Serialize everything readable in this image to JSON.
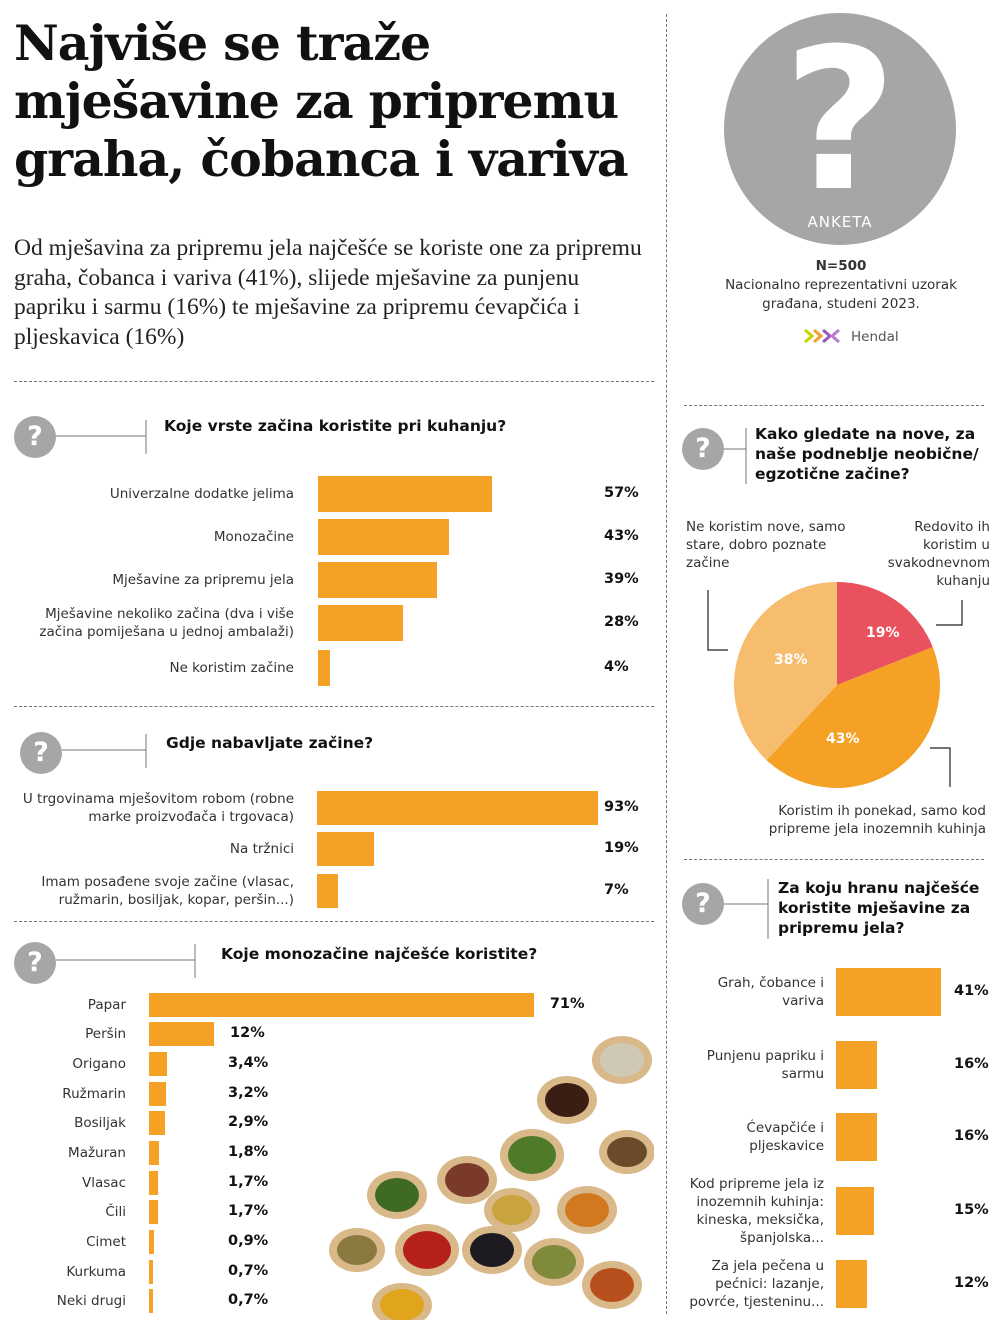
{
  "header": {
    "title": "Najviše se traže mješavine za pripremu graha, čobanca i variva",
    "lead": "Od mješavina za pripremu jela najčešće se koriste one za pripremu graha, čobanca i variva (41%), slijede mješavine za punjenu papriku i sarmu (16%) te mješavine za pripremu ćevapčića i pljeskavica (16%)"
  },
  "survey": {
    "badge": "ANKETA",
    "question_mark": "?",
    "n": "N=500",
    "desc_line1": "Nacionalno reprezentativni uzorak",
    "desc_line2": "građana, studeni 2023.",
    "brand": "Hendal"
  },
  "icons": {
    "question": "?"
  },
  "colors": {
    "bar": "#f5a126",
    "pie_red": "#e8515d",
    "pie_orange": "#f5a126",
    "pie_light": "#f7bd6f",
    "icon_grey": "#a6a6a6"
  },
  "chart_data": [
    {
      "type": "bar",
      "title": "Koje vrste začina koristite pri kuhanju?",
      "categories": [
        "Univerzalne dodatke jelima",
        "Monozačine",
        "Mješavine za pripremu jela",
        "Mješavine nekoliko začina (dva i više začina pomiješana u jednoj ambalaži)",
        "Ne koristim začine"
      ],
      "values": [
        57,
        43,
        39,
        28,
        4
      ],
      "value_labels": [
        "57%",
        "43%",
        "39%",
        "28%",
        "4%"
      ],
      "unit": "%"
    },
    {
      "type": "bar",
      "title": "Gdje nabavljate začine?",
      "categories": [
        "U trgovinama mješovitom robom (robne marke proizvođača i trgovaca)",
        "Na tržnici",
        "Imam posađene svoje začine (vlasac, ružmarin, bosiljak, kopar, peršin...)"
      ],
      "values": [
        93,
        19,
        7
      ],
      "value_labels": [
        "93%",
        "19%",
        "7%"
      ],
      "unit": "%"
    },
    {
      "type": "bar",
      "title": "Koje monozačine najčešće koristite?",
      "categories": [
        "Papar",
        "Peršin",
        "Origano",
        "Ružmarin",
        "Bosiljak",
        "Mažuran",
        "Vlasac",
        "Čili",
        "Cimet",
        "Kurkuma",
        "Neki drugi"
      ],
      "values": [
        71,
        12,
        3.4,
        3.2,
        2.9,
        1.8,
        1.7,
        1.7,
        0.9,
        0.7,
        0.7
      ],
      "value_labels": [
        "71%",
        "12%",
        "3,4%",
        "3,2%",
        "2,9%",
        "1,8%",
        "1,7%",
        "1,7%",
        "0,9%",
        "0,7%",
        "0,7%"
      ],
      "unit": "%"
    },
    {
      "type": "pie",
      "title": "Kako gledate na nove, za naše podneblje neobične/ egzotične začine?",
      "slices": [
        {
          "label": "Redovito ih koristim u svakodnevnom kuhanju",
          "value": 19,
          "value_label": "19%",
          "color": "#e8515d"
        },
        {
          "label": "Koristim ih ponekad, samo kod pripreme jela inozemnih kuhinja",
          "value": 43,
          "value_label": "43%",
          "color": "#f5a126"
        },
        {
          "label": "Ne koristim nove, samo stare, dobro poznate začine",
          "value": 38,
          "value_label": "38%",
          "color": "#f7bd6f"
        }
      ]
    },
    {
      "type": "bar",
      "title": "Za koju hranu najčešće koristite mješavine za pripremu jela?",
      "categories": [
        "Grah, čobance i variva",
        "Punjenu papriku i sarmu",
        "Ćevapčiće i pljeskavice",
        "Kod pripreme jela iz inozemnih kuhinja: kineska, meksička, španjolska...",
        "Za jela pečena u pećnici: lazanje, povrće, tjesteninu..."
      ],
      "values": [
        41,
        16,
        16,
        15,
        12
      ],
      "value_labels": [
        "41%",
        "16%",
        "16%",
        "15%",
        "12%"
      ],
      "unit": "%"
    }
  ]
}
